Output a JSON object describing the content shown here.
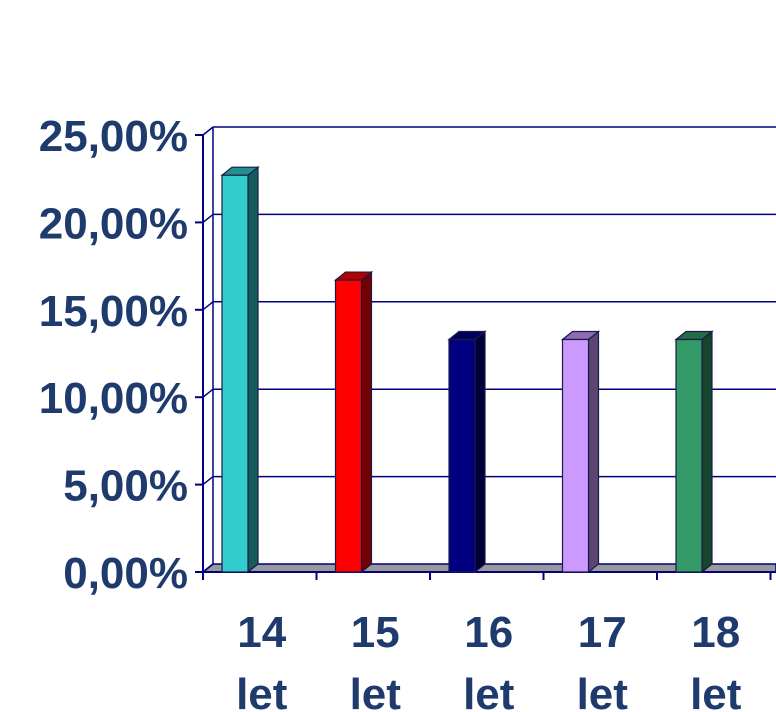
{
  "chart_data": {
    "type": "bar",
    "categories": [
      "14 let",
      "15 let",
      "16 let",
      "17 let",
      "18 let"
    ],
    "category_lines": [
      [
        "14",
        "let"
      ],
      [
        "15",
        "let"
      ],
      [
        "16",
        "let"
      ],
      [
        "17",
        "let"
      ],
      [
        "18",
        "let"
      ]
    ],
    "values": [
      22.7,
      16.7,
      13.3,
      13.3,
      13.3
    ],
    "bar_colors": [
      "#33cccc",
      "#ff0000",
      "#000080",
      "#cc99ff",
      "#339966"
    ],
    "ylim": [
      0,
      25
    ],
    "yticks": [
      0,
      5,
      10,
      15,
      20,
      25
    ],
    "ytick_labels": [
      "0,00%",
      "5,00%",
      "10,00%",
      "15,00%",
      "20,00%",
      "25,00%"
    ],
    "grid": true,
    "style": "3d"
  }
}
